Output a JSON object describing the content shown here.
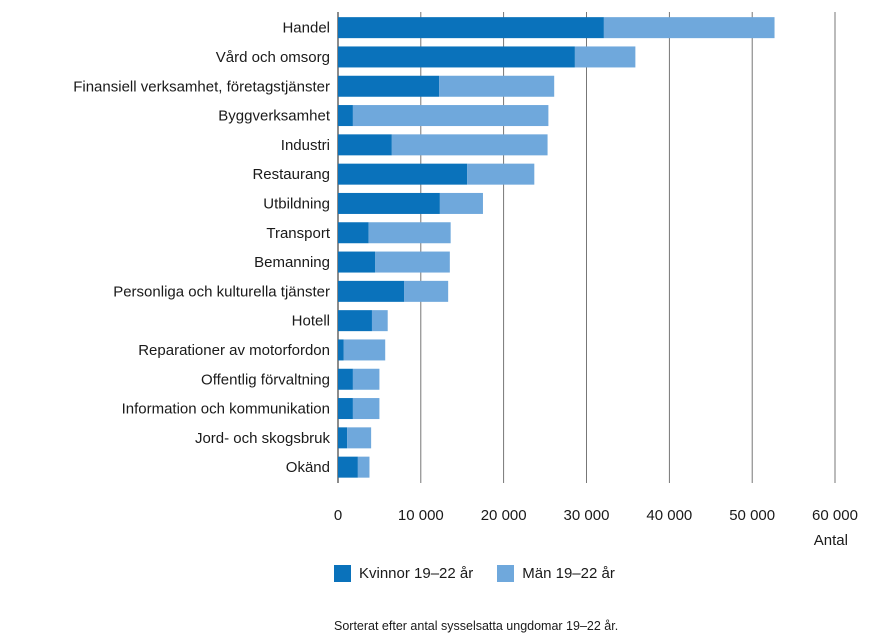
{
  "chart_data": {
    "type": "bar",
    "orientation": "horizontal",
    "stacked": true,
    "categories": [
      "Handel",
      "Vård och omsorg",
      "Finansiell verksamhet, företagstjänster",
      "Byggverksamhet",
      "Industri",
      "Restaurang",
      "Utbildning",
      "Transport",
      "Bemanning",
      "Personliga och kulturella tjänster",
      "Hotell",
      "Reparationer av motorfordon",
      "Offentlig förvaltning",
      "Information och kommunikation",
      "Jord- och skogsbruk",
      "Okänd"
    ],
    "series": [
      {
        "name": "Kvinnor 19–22 år",
        "color": "#0a72bb",
        "values": [
          32100,
          28600,
          12200,
          1800,
          6500,
          15600,
          12300,
          3700,
          4500,
          8000,
          4100,
          700,
          1800,
          1800,
          1100,
          2400
        ]
      },
      {
        "name": "Män 19–22 år",
        "color": "#6fa8dc",
        "values": [
          20600,
          7300,
          13900,
          23600,
          18800,
          8100,
          5200,
          9900,
          9000,
          5300,
          1900,
          5000,
          3200,
          3200,
          2900,
          1400
        ]
      }
    ],
    "xlim": [
      0,
      60000
    ],
    "xticks": [
      0,
      10000,
      20000,
      30000,
      40000,
      50000,
      60000
    ],
    "xtick_labels": [
      "0",
      "10 000",
      "20 000",
      "30 000",
      "40 000",
      "50 000",
      "60 000"
    ],
    "xlabel": "Antal",
    "grid": "vertical",
    "legend_position": "bottom"
  },
  "legend": {
    "women_label": "Kvinnor 19–22 år",
    "men_label": "Män 19–22 år"
  },
  "note": "Sorterat efter antal sysselsatta ungdomar 19–22 år."
}
